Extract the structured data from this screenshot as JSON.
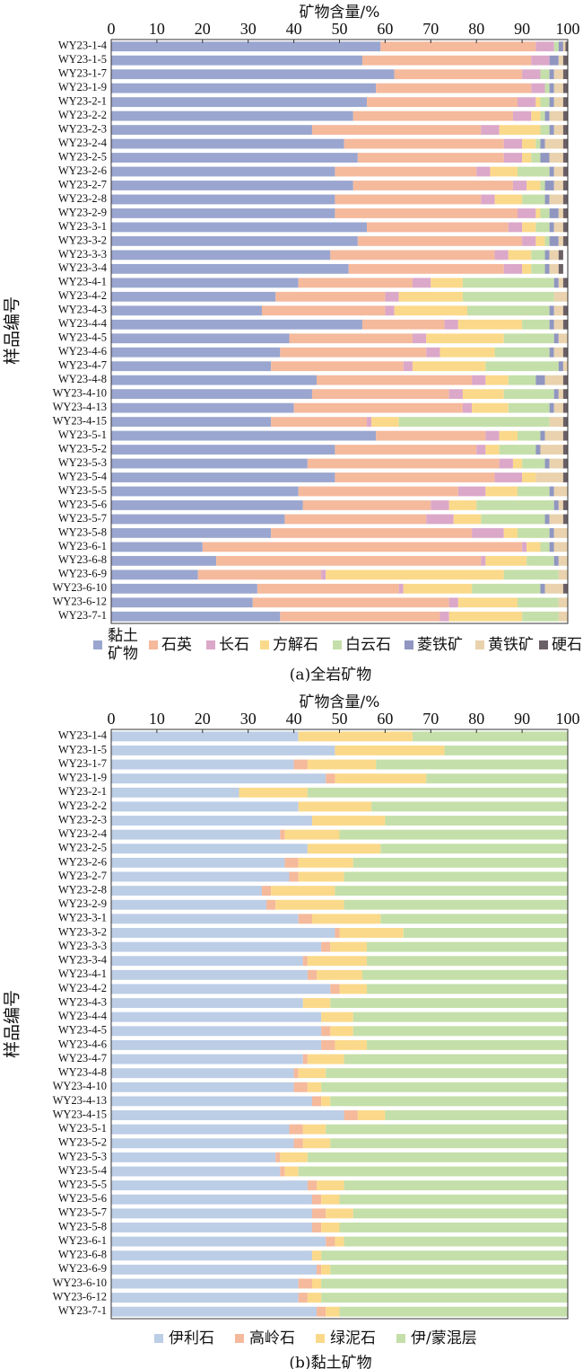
{
  "chart_data": [
    {
      "type": "bar",
      "orientation": "horizontal",
      "stacked": true,
      "xlabel": "矿物含量/%",
      "ylabel": "样品编号",
      "caption": "(a)全岩矿物",
      "xlim": [
        0,
        100
      ],
      "xticks": [
        "0",
        "10",
        "20",
        "30",
        "40",
        "50",
        "60",
        "70",
        "80",
        "90",
        "100"
      ],
      "legend_position": "bottom",
      "categories": [
        "WY23-1-4",
        "WY23-1-5",
        "WY23-1-7",
        "WY23-1-9",
        "WY23-2-1",
        "WY23-2-2",
        "WY23-2-3",
        "WY23-2-4",
        "WY23-2-5",
        "WY23-2-6",
        "WY23-2-7",
        "WY23-2-8",
        "WY23-2-9",
        "WY23-3-1",
        "WY23-3-2",
        "WY23-3-3",
        "WY23-3-4",
        "WY23-4-1",
        "WY23-4-2",
        "WY23-4-3",
        "WY23-4-4",
        "WY23-4-5",
        "WY23-4-6",
        "WY23-4-7",
        "WY23-4-8",
        "WY23-4-10",
        "WY23-4-13",
        "WY23-4-15",
        "WY23-5-1",
        "WY23-5-2",
        "WY23-5-3",
        "WY23-5-4",
        "WY23-5-5",
        "WY23-5-6",
        "WY23-5-7",
        "WY23-5-8",
        "WY23-6-1",
        "WY23-6-8",
        "WY23-6-9",
        "WY23-6-10",
        "WY23-6-12",
        "WY23-7-1"
      ],
      "series": [
        {
          "name": "黏土\n矿物",
          "color": "#9aa6cf",
          "values": [
            59,
            55,
            62,
            58,
            56,
            53,
            44,
            51,
            54,
            49,
            53,
            49,
            49,
            56,
            54,
            48,
            52,
            41,
            36,
            33,
            55,
            39,
            37,
            35,
            45,
            44,
            40,
            35,
            58,
            49,
            43,
            49,
            41,
            42,
            38,
            35,
            20,
            23,
            19,
            32,
            31,
            37
          ]
        },
        {
          "name": "石英",
          "color": "#f5b99c",
          "values": [
            34,
            37,
            28,
            34,
            33,
            35,
            37,
            35,
            32,
            31,
            35,
            32,
            40,
            31,
            36,
            36,
            34,
            25,
            24,
            27,
            18,
            27,
            32,
            29,
            34,
            30,
            37,
            21,
            24,
            31,
            42,
            35,
            35,
            28,
            31,
            44,
            70,
            58,
            27,
            31,
            43,
            35
          ]
        },
        {
          "name": "长石",
          "color": "#dba8c9",
          "values": [
            4,
            4,
            4,
            3,
            4,
            4,
            4,
            4,
            4,
            3,
            3,
            3,
            4,
            3,
            3,
            3,
            4,
            4,
            3,
            2,
            3,
            3,
            3,
            2,
            3,
            3,
            2,
            1,
            3,
            2,
            3,
            6,
            6,
            4,
            6,
            7,
            1,
            1,
            1,
            1,
            2,
            2
          ]
        },
        {
          "name": "方解石",
          "color": "#fbd98a",
          "values": [
            0,
            0,
            0,
            0,
            1,
            2,
            9,
            3,
            2,
            6,
            3,
            6,
            1,
            3,
            2,
            5,
            2,
            7,
            14,
            16,
            14,
            17,
            12,
            16,
            5,
            9,
            8,
            6,
            4,
            3,
            2,
            3,
            7,
            6,
            6,
            3,
            3,
            9,
            39,
            15,
            13,
            16
          ]
        },
        {
          "name": "白云石",
          "color": "#c4dfa9",
          "values": [
            1,
            0,
            2,
            1,
            2,
            1,
            2,
            1,
            2,
            7,
            1,
            5,
            2,
            3,
            1,
            3,
            3,
            20,
            20,
            18,
            6,
            11,
            12,
            16,
            6,
            11,
            9,
            33,
            5,
            8,
            5,
            0,
            7,
            17,
            14,
            7,
            2,
            6,
            12,
            15,
            9,
            8
          ]
        },
        {
          "name": "菱铁矿",
          "color": "#9096c0",
          "values": [
            1,
            2,
            1,
            1,
            1,
            1,
            1,
            1,
            2,
            1,
            2,
            1,
            2,
            1,
            2,
            1,
            1,
            1,
            0,
            1,
            1,
            1,
            1,
            1,
            2,
            1,
            1,
            0,
            1,
            1,
            1,
            0,
            1,
            1,
            1,
            1,
            1,
            1,
            0,
            1,
            0,
            0
          ]
        },
        {
          "name": "黄铁矿",
          "color": "#e9d2ad",
          "values": [
            0.5,
            1,
            2,
            2,
            2,
            3,
            2,
            4,
            3,
            2,
            2,
            3,
            1,
            2,
            1,
            2,
            2,
            1,
            3,
            2,
            2,
            2,
            2,
            1,
            4,
            1,
            2,
            3,
            4,
            5,
            3,
            6,
            3,
            1,
            3,
            3,
            3,
            2,
            2,
            4,
            2,
            2
          ]
        },
        {
          "name": "硬石膏",
          "color": "#6b6066",
          "values": [
            0.5,
            1,
            1,
            1,
            1,
            1,
            1,
            1,
            1,
            1,
            1,
            1,
            1,
            1,
            1,
            1,
            1,
            1,
            0,
            1,
            1,
            0,
            1,
            0,
            1,
            1,
            1,
            1,
            1,
            1,
            1,
            1,
            0,
            1,
            1,
            0,
            0,
            0,
            0,
            1,
            0,
            0
          ]
        }
      ]
    },
    {
      "type": "bar",
      "orientation": "horizontal",
      "stacked": true,
      "xlabel": "矿物含量/%",
      "ylabel": "样品编号",
      "caption": "(b)黏土矿物",
      "xlim": [
        0,
        100
      ],
      "xticks": [
        "0",
        "10",
        "20",
        "30",
        "40",
        "50",
        "60",
        "70",
        "80",
        "90",
        "100"
      ],
      "legend_position": "bottom",
      "categories": [
        "WY23-1-4",
        "WY23-1-5",
        "WY23-1-7",
        "WY23-1-9",
        "WY23-2-1",
        "WY23-2-2",
        "WY23-2-3",
        "WY23-2-4",
        "WY23-2-5",
        "WY23-2-6",
        "WY23-2-7",
        "WY23-2-8",
        "WY23-2-9",
        "WY23-3-1",
        "WY23-3-2",
        "WY23-3-3",
        "WY23-3-4",
        "WY23-4-1",
        "WY23-4-2",
        "WY23-4-3",
        "WY23-4-4",
        "WY23-4-5",
        "WY23-4-6",
        "WY23-4-7",
        "WY23-4-8",
        "WY23-4-10",
        "WY23-4-13",
        "WY23-4-15",
        "WY23-5-1",
        "WY23-5-2",
        "WY23-5-3",
        "WY23-5-4",
        "WY23-5-5",
        "WY23-5-6",
        "WY23-5-7",
        "WY23-5-8",
        "WY23-6-1",
        "WY23-6-8",
        "WY23-6-9",
        "WY23-6-10",
        "WY23-6-12",
        "WY23-7-1"
      ],
      "series": [
        {
          "name": "伊利石",
          "color": "#bccde6",
          "values": [
            41,
            49,
            40,
            47,
            28,
            41,
            44,
            37,
            43,
            38,
            39,
            33,
            34,
            41,
            49,
            46,
            42,
            43,
            48,
            42,
            46,
            46,
            46,
            42,
            40,
            40,
            44,
            51,
            39,
            40,
            36,
            37,
            43,
            44,
            44,
            44,
            47,
            44,
            45,
            41,
            41,
            45
          ]
        },
        {
          "name": "高岭石",
          "color": "#f5b99c",
          "values": [
            0,
            0,
            3,
            2,
            0,
            0,
            0,
            1,
            0,
            3,
            2,
            2,
            2,
            3,
            1,
            2,
            1,
            2,
            2,
            0,
            0,
            2,
            3,
            1,
            1,
            3,
            2,
            3,
            3,
            2,
            1,
            1,
            2,
            2,
            3,
            2,
            2,
            0,
            1,
            3,
            2,
            2
          ]
        },
        {
          "name": "绿泥石",
          "color": "#fbd98a",
          "values": [
            25,
            24,
            15,
            20,
            15,
            16,
            16,
            12,
            16,
            12,
            10,
            14,
            15,
            15,
            14,
            8,
            13,
            10,
            6,
            6,
            7,
            5,
            7,
            8,
            6,
            3,
            2,
            6,
            5,
            6,
            6,
            3,
            6,
            4,
            6,
            4,
            2,
            2,
            2,
            2,
            3,
            3
          ]
        },
        {
          "name": "伊/蒙混层",
          "color": "#c4dfa9",
          "values": [
            34,
            27,
            42,
            31,
            57,
            43,
            40,
            50,
            41,
            47,
            49,
            51,
            49,
            41,
            36,
            44,
            44,
            45,
            44,
            52,
            47,
            47,
            44,
            49,
            53,
            54,
            52,
            40,
            53,
            52,
            57,
            59,
            49,
            50,
            47,
            50,
            49,
            54,
            52,
            54,
            54,
            50
          ]
        }
      ]
    }
  ]
}
